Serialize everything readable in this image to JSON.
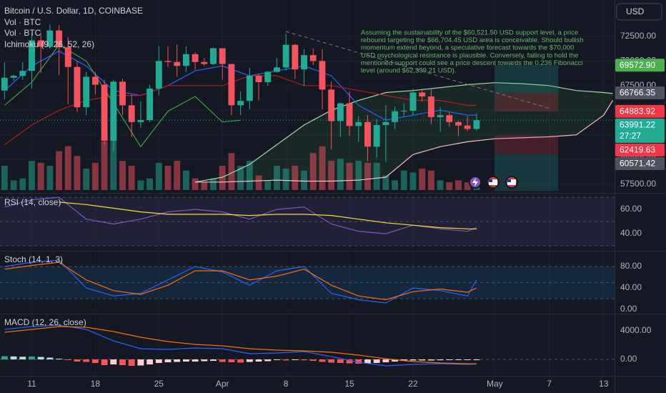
{
  "chart_data": {
    "type": "candlestick",
    "title": "Bitcoin / U.S. Dollar, 1D, COINBASE",
    "legend": [
      "Vol · BTC",
      "Vol · BTC",
      "Ichimoku (9, 26, 52, 26)"
    ],
    "currency": "USD",
    "xlim": [
      7.5,
      75.2
    ],
    "xticks": [
      {
        "value": 11,
        "label": "11"
      },
      {
        "value": 18,
        "label": "18"
      },
      {
        "value": 25,
        "label": "25"
      },
      {
        "value": 32,
        "label": "Apr"
      },
      {
        "value": 39,
        "label": "8"
      },
      {
        "value": 46,
        "label": "15"
      },
      {
        "value": 53,
        "label": "22"
      },
      {
        "value": 62,
        "label": "May"
      },
      {
        "value": 68,
        "label": "7"
      },
      {
        "value": 74,
        "label": "13"
      }
    ],
    "ylim": [
      56600,
      76200
    ],
    "yticks": [
      {
        "value": 57500,
        "label": "57500.00"
      },
      {
        "value": 60000,
        "label": "60000.00"
      },
      {
        "value": 62500,
        "label": "62500.00"
      },
      {
        "value": 65000,
        "label": "65000.00"
      },
      {
        "value": 67500,
        "label": "67500.00"
      },
      {
        "value": 70000,
        "label": "70000.00"
      },
      {
        "value": 72500,
        "label": "72500.00"
      }
    ],
    "up_color": "#22ab94",
    "down_color": "#f7525f",
    "x": [
      8,
      9,
      10,
      11,
      12,
      13,
      14,
      15,
      16,
      17,
      18,
      19,
      20,
      21,
      22,
      23,
      24,
      25,
      26,
      27,
      28,
      29,
      30,
      31,
      32,
      33,
      34,
      35,
      36,
      37,
      38,
      39,
      40,
      41,
      42,
      43,
      44,
      45,
      46,
      47,
      48,
      49,
      50,
      51,
      52,
      53,
      54,
      55,
      56,
      57,
      58,
      59,
      60
    ],
    "open": [
      67000,
      68300,
      68500,
      69000,
      72100,
      71450,
      73100,
      71400,
      69400,
      65300,
      68400,
      67600,
      61900,
      67900,
      65500,
      63800,
      64000,
      67200,
      70000,
      69900,
      69500,
      70700,
      69900,
      69700,
      71300,
      69700,
      65500,
      65950,
      68500,
      67850,
      68900,
      69350,
      71650,
      69150,
      70600,
      70000,
      67100,
      63900,
      65700,
      63400,
      63800,
      61300,
      63500,
      63800,
      64900,
      64950,
      66800,
      66400,
      64300,
      64500,
      63800,
      63450,
      63100
    ],
    "high": [
      69900,
      68600,
      69900,
      72800,
      72900,
      73700,
      73650,
      72400,
      70000,
      68900,
      68900,
      68100,
      68100,
      68200,
      66600,
      65900,
      67600,
      71500,
      71500,
      71700,
      71500,
      70900,
      70300,
      71350,
      71300,
      69700,
      66900,
      69300,
      68700,
      69000,
      70300,
      72800,
      71750,
      71200,
      71300,
      71200,
      67900,
      65800,
      66900,
      64400,
      64500,
      64100,
      65500,
      65400,
      65700,
      67200,
      67200,
      67100,
      65300,
      64800,
      63900,
      64400,
      64700
    ],
    "low": [
      66100,
      68000,
      68100,
      67200,
      68800,
      71300,
      68600,
      65600,
      64800,
      64500,
      66600,
      61500,
      60800,
      64500,
      62300,
      63200,
      63800,
      66500,
      69400,
      68400,
      68900,
      69100,
      69500,
      69600,
      68100,
      64500,
      64500,
      65100,
      66000,
      67500,
      68800,
      69050,
      68200,
      67500,
      69600,
      65100,
      61000,
      62300,
      62400,
      61800,
      59800,
      60200,
      59700,
      63100,
      64300,
      64500,
      65900,
      63600,
      62800,
      63300,
      62400,
      62900,
      62900
    ],
    "close": [
      68300,
      68500,
      69000,
      72100,
      71450,
      73100,
      71400,
      69400,
      65300,
      68400,
      67600,
      61900,
      67900,
      65500,
      63800,
      64000,
      67200,
      70000,
      69900,
      69500,
      70700,
      69900,
      69700,
      71300,
      69700,
      65500,
      65950,
      68500,
      67850,
      68900,
      69350,
      71650,
      69150,
      70600,
      70000,
      67100,
      63900,
      65700,
      63400,
      63800,
      61300,
      63500,
      63800,
      64900,
      64950,
      66800,
      66400,
      64300,
      64500,
      63800,
      63450,
      63100,
      63991.22
    ],
    "volume": [
      25000,
      10000,
      12000,
      30000,
      28000,
      25000,
      40000,
      45000,
      35000,
      22000,
      28000,
      50000,
      55000,
      30000,
      25000,
      10000,
      12000,
      28000,
      25000,
      30000,
      20000,
      12000,
      8000,
      12000,
      25000,
      38000,
      25000,
      30000,
      15000,
      10000,
      25000,
      22000,
      25000,
      20000,
      38000,
      45000,
      30000,
      32000,
      28000,
      30000,
      28000,
      28000,
      15000,
      10000,
      20000,
      18000,
      22000,
      20000,
      10000,
      8000,
      10000,
      8000,
      9000
    ],
    "ichimoku": {
      "cloud_color": "rgba(67,160,71,0.12)",
      "lines": [
        {
          "color": "#2962ff",
          "x": [
            8,
            11,
            14,
            17,
            20,
            23,
            26,
            29,
            32,
            35,
            38,
            41,
            44,
            47,
            50,
            53,
            56,
            59,
            60
          ],
          "values": [
            67000,
            69500,
            71000,
            69500,
            67000,
            66500,
            67500,
            69000,
            69500,
            68500,
            69000,
            69500,
            68500,
            65500,
            64000,
            64500,
            65000,
            64500,
            64500
          ]
        },
        {
          "color": "#b71c1c",
          "x": [
            8,
            11,
            14,
            17,
            20,
            23,
            26,
            29,
            32,
            35,
            38,
            41,
            44,
            47,
            50,
            53,
            56,
            59,
            60
          ],
          "values": [
            61500,
            63500,
            65000,
            66000,
            66500,
            66500,
            67500,
            67500,
            67500,
            68500,
            68500,
            67500,
            67500,
            67000,
            66500,
            66000,
            66000,
            65500,
            65500
          ]
        },
        {
          "color": "#43a047",
          "x": [
            8,
            11,
            14,
            17,
            20,
            23,
            26,
            29,
            32,
            34
          ],
          "values": [
            65500,
            67850,
            71650,
            70000,
            65700,
            61300,
            64900,
            66400,
            63800,
            63990
          ]
        }
      ],
      "span_a": {
        "color": "#a5d6a7",
        "x": [
          29,
          32,
          35,
          38,
          41,
          44,
          47,
          50,
          53,
          56,
          59,
          62,
          65,
          68,
          71,
          74,
          75
        ],
        "values": [
          57700,
          58200,
          59500,
          61500,
          63500,
          65000,
          66000,
          66800,
          67000,
          67300,
          67600,
          67800,
          67700,
          67500,
          67000,
          66800,
          66700
        ]
      },
      "span_b": {
        "color": "#f8bbd0",
        "x": [
          29,
          32,
          35,
          38,
          41,
          44,
          47,
          50,
          53,
          56,
          59,
          62,
          65,
          68,
          71,
          74,
          75
        ],
        "values": [
          57700,
          57700,
          57800,
          57900,
          57800,
          57800,
          57900,
          58200,
          60500,
          61300,
          61800,
          62100,
          62200,
          62300,
          62500,
          64500,
          66000
        ]
      }
    },
    "trendline": {
      "color": "#787b86",
      "x": [
        39,
        68
      ],
      "values": [
        73000,
        65200
      ]
    },
    "positions": [
      {
        "x": [
          62,
          69
        ],
        "target": 69572.9,
        "entry": 66766.35,
        "stop": 64883.92
      },
      {
        "x": [
          62,
          69
        ],
        "stop": 62419.63,
        "entry": 60571.42,
        "target": 56800
      }
    ],
    "price_tags": [
      {
        "value": 69572.9,
        "label": "69572.90",
        "color": "#4caf50"
      },
      {
        "value": 66766.35,
        "label": "66766.35",
        "color": "#50535e"
      },
      {
        "value": 64883.92,
        "label": "64883.92",
        "color": "#f23645"
      },
      {
        "value": 63991.22,
        "label": "63991.22",
        "color": "#22ab94",
        "countdown": "27:27"
      },
      {
        "value": 62419.63,
        "label": "62419.63",
        "color": "#f23645"
      },
      {
        "value": 60571.42,
        "label": "60571.42",
        "color": "#50535e"
      }
    ],
    "annotation": [
      "Assuming the sustainability of the $60,521.50 USD support level, a price",
      "rebound targeting the $66,704.45 USD area is conceivable. Should bullish",
      "momentum extend beyond, a speculative forecast towards the $70,000",
      "USD psychological resistance is plausible. Conversely, failing to hold the",
      "mentioned support could see a price descent towards the 0.236 Fibonacci",
      "level (around $62,399.21 USD)."
    ],
    "annotation_color": "#66b86a",
    "indicators": [
      {
        "type": "line",
        "title": "RSI (14, close)",
        "ylim": [
          26.5,
          72.4
        ],
        "yticks": [
          {
            "value": 60,
            "label": "60.00"
          },
          {
            "value": 40,
            "label": "40.00"
          }
        ],
        "hlines": [
          70,
          50,
          30
        ],
        "band_color": "rgba(126,87,194,0.12)",
        "series": [
          {
            "color": "#7e57c2",
            "x": [
              8,
              11,
              14,
              17,
              20,
              23,
              26,
              29,
              32,
              35,
              38,
              41,
              44,
              47,
              50,
              53,
              56,
              59,
              60
            ],
            "values": [
              62,
              68,
              70,
              52,
              48,
              52,
              58,
              60,
              58,
              52,
              60,
              62,
              48,
              42,
              40,
              47,
              44,
              42,
              45
            ]
          },
          {
            "color": "#fdd835",
            "x": [
              14,
              17,
              20,
              23,
              26,
              29,
              32,
              35,
              38,
              41,
              44,
              47,
              50,
              53,
              56,
              59,
              60
            ],
            "values": [
              66,
              64,
              61,
              58,
              56,
              56,
              56,
              55,
              56,
              56,
              55,
              52,
              49,
              47,
              45,
              44,
              44
            ]
          }
        ]
      },
      {
        "type": "line",
        "title": "Stoch (14, 1, 3)",
        "ylim": [
          -6.7,
          108
        ],
        "yticks": [
          {
            "value": 80,
            "label": "80.00"
          },
          {
            "value": 40,
            "label": "40.00"
          },
          {
            "value": 0,
            "label": "0.00"
          }
        ],
        "hlines": [
          80,
          50,
          20
        ],
        "band_color": "rgba(33,150,243,0.12)",
        "series": [
          {
            "color": "#2962ff",
            "x": [
              8,
              11,
              14,
              17,
              20,
              23,
              26,
              29,
              32,
              35,
              38,
              41,
              44,
              47,
              50,
              53,
              56,
              59,
              60
            ],
            "values": [
              80,
              88,
              92,
              40,
              25,
              30,
              55,
              80,
              70,
              45,
              72,
              80,
              30,
              18,
              12,
              40,
              35,
              25,
              55
            ]
          },
          {
            "color": "#ff6d00",
            "x": [
              8,
              11,
              14,
              17,
              20,
              23,
              26,
              29,
              32,
              35,
              38,
              41,
              44,
              47,
              50,
              53,
              56,
              59,
              60
            ],
            "values": [
              75,
              82,
              88,
              55,
              35,
              28,
              45,
              72,
              72,
              55,
              62,
              75,
              45,
              25,
              18,
              33,
              38,
              32,
              40
            ]
          }
        ]
      },
      {
        "type": "line",
        "title": "MACD (12, 26, close)",
        "ylim": [
          -2200,
          6300
        ],
        "yticks": [
          {
            "value": 4000,
            "label": "4000.00"
          },
          {
            "value": 0,
            "label": "0.00"
          }
        ],
        "hlines": [
          0
        ],
        "histogram": {
          "colors": [
            "#26a69a",
            "#b2dfdb",
            "#ff5252",
            "#ffcdd2"
          ],
          "x": [
            8,
            9,
            10,
            11,
            12,
            13,
            14,
            15,
            16,
            17,
            18,
            19,
            20,
            21,
            22,
            23,
            24,
            25,
            26,
            27,
            28,
            29,
            30,
            31,
            32,
            33,
            34,
            35,
            36,
            37,
            38,
            39,
            40,
            41,
            42,
            43,
            44,
            45,
            46,
            47,
            48,
            49,
            50,
            51,
            52,
            53,
            54,
            55,
            56,
            57,
            58,
            59,
            60
          ],
          "values": [
            450,
            420,
            380,
            420,
            350,
            250,
            100,
            -100,
            -300,
            -350,
            -500,
            -800,
            -700,
            -800,
            -900,
            -850,
            -700,
            -500,
            -400,
            -350,
            -300,
            -300,
            -250,
            -200,
            -350,
            -400,
            -450,
            -350,
            -300,
            -250,
            -100,
            -150,
            -100,
            -120,
            -200,
            -350,
            -450,
            -500,
            -550,
            -600,
            -550,
            -500,
            -400,
            -300,
            -200,
            -150,
            -150,
            -150,
            -120,
            -100,
            -80,
            -50,
            -40
          ]
        },
        "series": [
          {
            "color": "#2962ff",
            "x": [
              8,
              11,
              14,
              17,
              20,
              23,
              26,
              29,
              32,
              35,
              38,
              41,
              44,
              47,
              50,
              53,
              56,
              59,
              60
            ],
            "values": [
              4200,
              4600,
              4800,
              4200,
              2600,
              1500,
              1400,
              1600,
              1500,
              800,
              900,
              1100,
              400,
              -400,
              -900,
              -700,
              -600,
              -700,
              -650
            ]
          },
          {
            "color": "#ff6d00",
            "x": [
              8,
              11,
              14,
              17,
              20,
              23,
              26,
              29,
              32,
              35,
              38,
              41,
              44,
              47,
              50,
              53,
              56,
              59,
              60
            ],
            "values": [
              3800,
              4200,
              4600,
              4500,
              3900,
              3100,
              2500,
              2100,
              1900,
              1500,
              1300,
              1200,
              1000,
              600,
              100,
              -300,
              -500,
              -600,
              -620
            ]
          }
        ]
      }
    ]
  }
}
